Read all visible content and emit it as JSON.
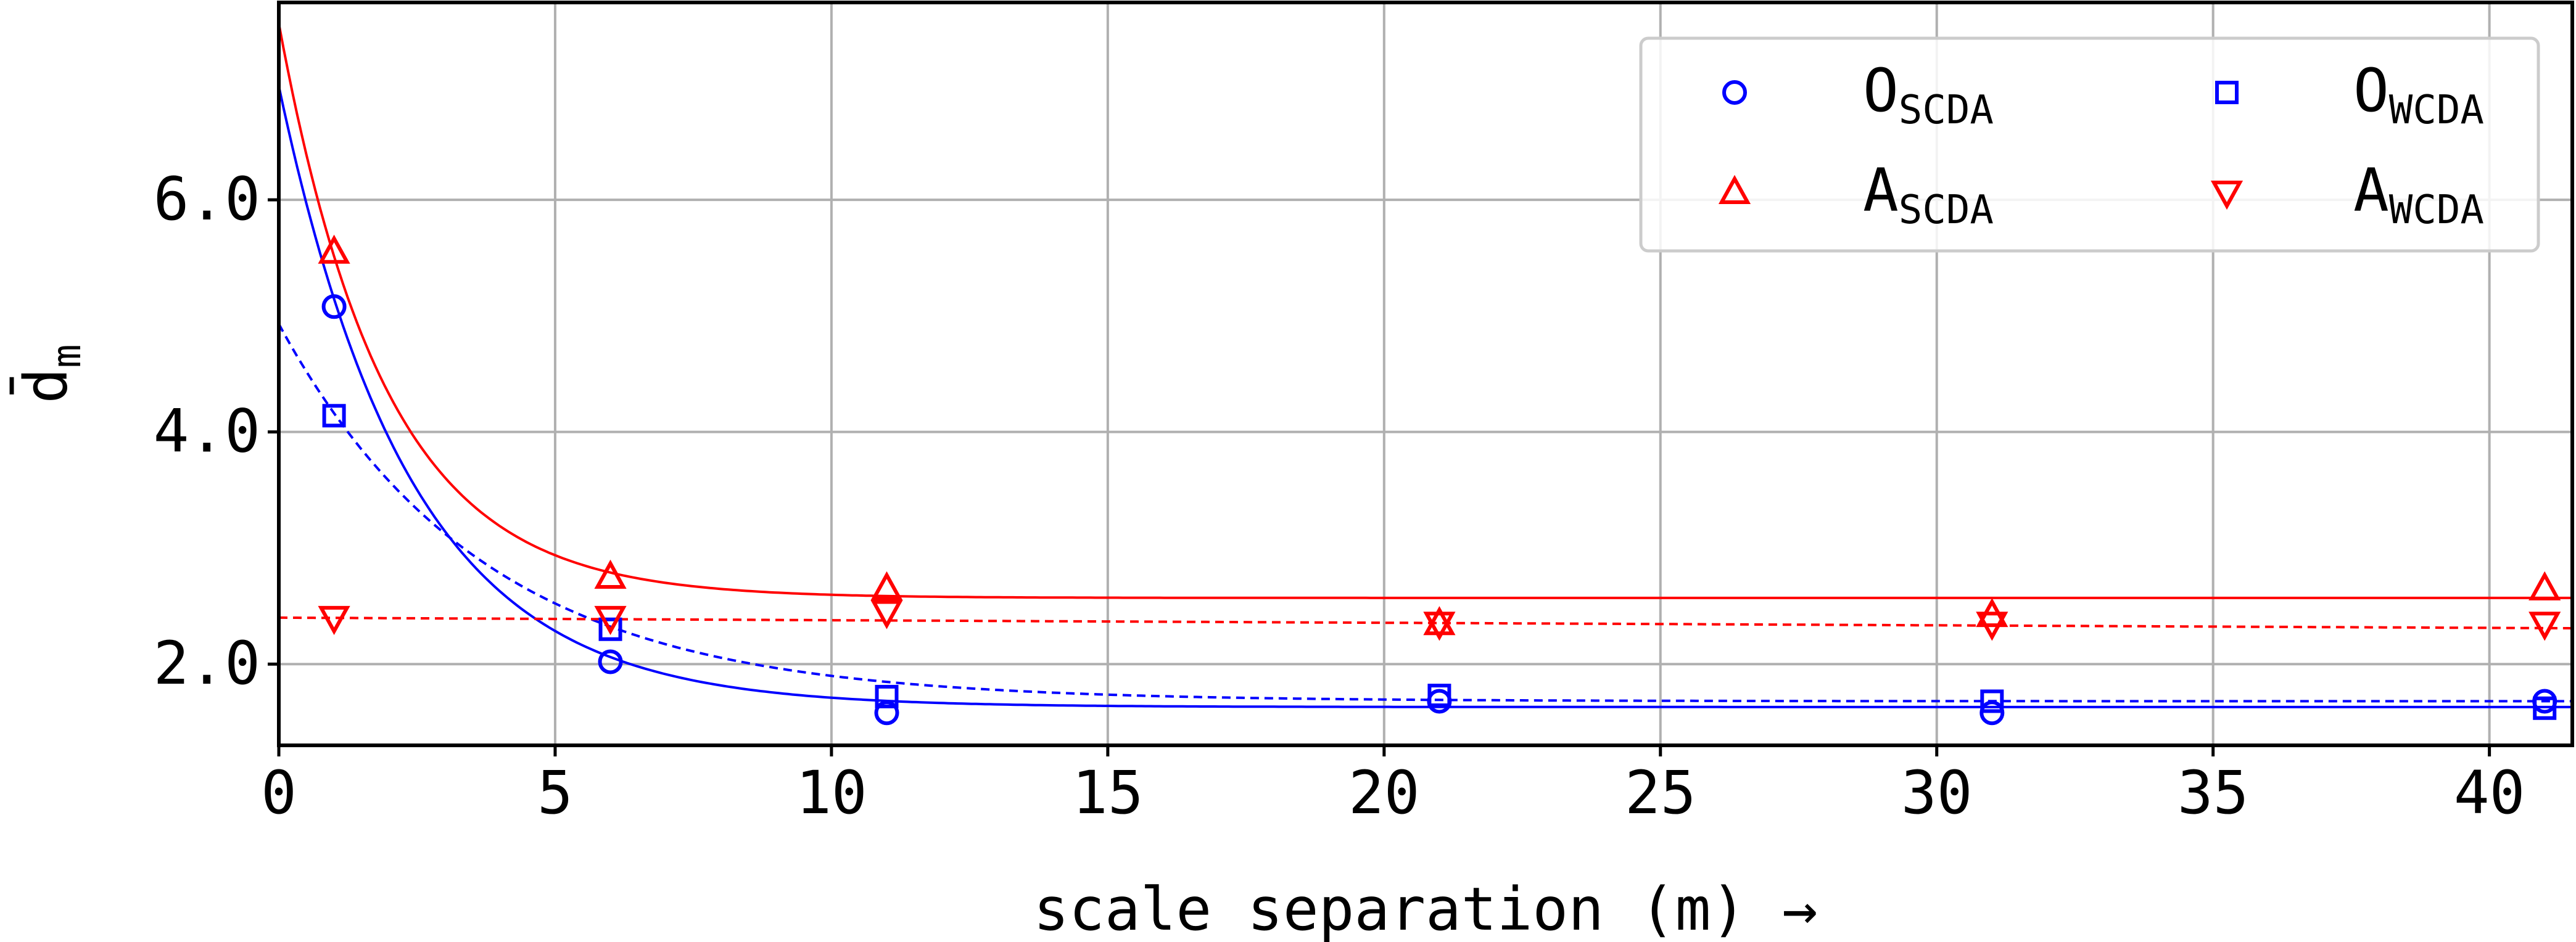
{
  "chart_data": {
    "type": "scatter",
    "xlabel": "scale separation (m) →",
    "ylabel_base": "d̄",
    "ylabel_sub": "m",
    "xlim": [
      0,
      41.5
    ],
    "ylim": [
      1.3,
      7.7
    ],
    "x_ticks": [
      0,
      5,
      10,
      15,
      20,
      25,
      30,
      35,
      40
    ],
    "x_tick_labels": [
      "0",
      "5",
      "10",
      "15",
      "20",
      "25",
      "30",
      "35",
      "40"
    ],
    "y_ticks": [
      2.0,
      4.0,
      6.0
    ],
    "y_tick_labels": [
      "2.0",
      "4.0",
      "6.0"
    ],
    "grid": true,
    "legend_position": "top-right",
    "legend_columns": 2,
    "series": [
      {
        "name_base": "O",
        "name_sub": "SCDA",
        "marker": "circle",
        "color": "#0000ff",
        "x": [
          1,
          6,
          11,
          21,
          31,
          41
        ],
        "y": [
          5.08,
          2.02,
          1.58,
          1.68,
          1.58,
          1.68
        ]
      },
      {
        "name_base": "O",
        "name_sub": "WCDA",
        "marker": "square",
        "color": "#0000ff",
        "x": [
          1,
          6,
          11,
          21,
          31,
          41
        ],
        "y": [
          4.14,
          2.3,
          1.72,
          1.73,
          1.68,
          1.62
        ]
      },
      {
        "name_base": "A",
        "name_sub": "SCDA",
        "marker": "triangle-up",
        "color": "#ff0000",
        "x": [
          1,
          6,
          11,
          21,
          31,
          41
        ],
        "y": [
          5.55,
          2.75,
          2.65,
          2.35,
          2.42,
          2.65
        ]
      },
      {
        "name_base": "A",
        "name_sub": "WCDA",
        "marker": "triangle-down",
        "color": "#ff0000",
        "x": [
          1,
          6,
          11,
          21,
          31,
          41
        ],
        "y": [
          2.4,
          2.4,
          2.45,
          2.35,
          2.35,
          2.35
        ]
      }
    ],
    "fits": [
      {
        "color": "#0000ff",
        "style": "solid",
        "a": 5.35,
        "k": 0.42,
        "c": 1.63
      },
      {
        "color": "#0000ff",
        "style": "dashed",
        "a": 3.25,
        "k": 0.27,
        "c": 1.68
      },
      {
        "color": "#ff0000",
        "style": "solid",
        "a": 4.95,
        "k": 0.52,
        "c": 2.57
      },
      {
        "color": "#ff0000",
        "style": "dashed",
        "a": 0,
        "k": 0,
        "c": 2.4,
        "slope": -0.0022
      }
    ]
  }
}
